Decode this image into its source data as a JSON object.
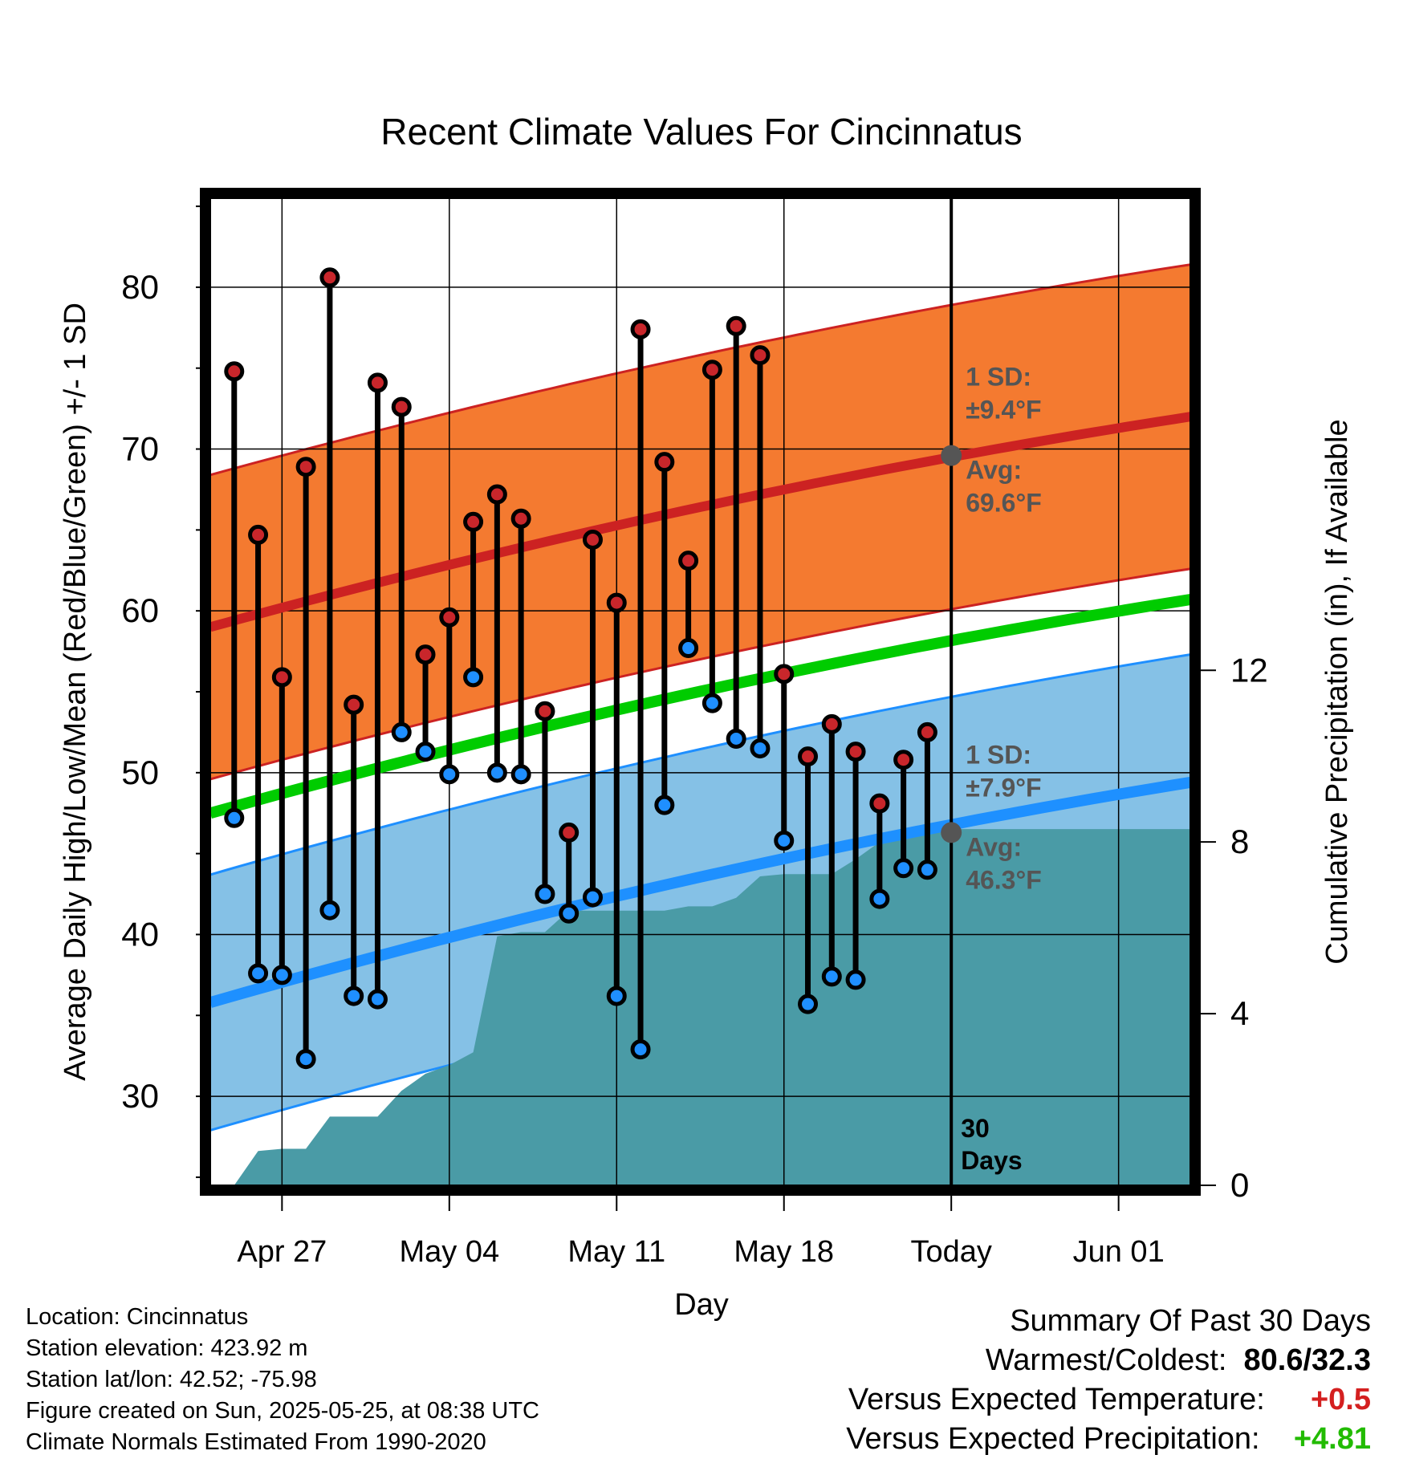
{
  "chart_data": {
    "type": "line",
    "title": "Recent Climate Values For Cincinnatus",
    "xlabel": "Day",
    "ylabel": "Average Daily High/Low/Mean (Red/Blue/Green) +/- 1 SD",
    "y2label": "Cumulative Precipitation (in), If Available",
    "ylim": [
      24.5,
      85.5
    ],
    "y2lim": [
      0,
      23
    ],
    "xlim": [
      "2025-04-24",
      "2025-06-04"
    ],
    "grid": true,
    "x_ticks": [
      {
        "date": "2025-04-27",
        "label": "Apr 27"
      },
      {
        "date": "2025-05-04",
        "label": "May 04"
      },
      {
        "date": "2025-05-11",
        "label": "May 11"
      },
      {
        "date": "2025-05-18",
        "label": "May 18"
      },
      {
        "date": "2025-05-25",
        "label": "Today"
      },
      {
        "date": "2025-06-01",
        "label": "Jun 01"
      }
    ],
    "y_ticks": [
      "30",
      "40",
      "50",
      "60",
      "70",
      "80"
    ],
    "y2_ticks": [
      "0",
      "4",
      "8",
      "12"
    ],
    "dates": [
      "2025-04-25",
      "2025-04-26",
      "2025-04-27",
      "2025-04-28",
      "2025-04-29",
      "2025-04-30",
      "2025-05-01",
      "2025-05-02",
      "2025-05-03",
      "2025-05-04",
      "2025-05-05",
      "2025-05-06",
      "2025-05-07",
      "2025-05-08",
      "2025-05-09",
      "2025-05-10",
      "2025-05-11",
      "2025-05-12",
      "2025-05-13",
      "2025-05-14",
      "2025-05-15",
      "2025-05-16",
      "2025-05-17",
      "2025-05-18",
      "2025-05-19",
      "2025-05-20",
      "2025-05-21",
      "2025-05-22",
      "2025-05-23",
      "2025-05-24"
    ],
    "series": [
      {
        "name": "Daily High",
        "color": "#c8262b",
        "values": [
          74.8,
          64.7,
          55.9,
          68.9,
          80.6,
          54.2,
          74.1,
          72.6,
          57.3,
          59.6,
          65.5,
          67.2,
          65.7,
          53.8,
          46.3,
          64.4,
          60.5,
          77.4,
          69.2,
          63.1,
          74.9,
          77.6,
          75.8,
          56.1,
          51.0,
          53.0,
          51.3,
          48.1,
          50.8,
          52.5
        ]
      },
      {
        "name": "Daily Low",
        "color": "#1f8fff",
        "values": [
          47.2,
          37.6,
          37.5,
          32.3,
          41.5,
          36.2,
          36.0,
          52.5,
          51.3,
          49.9,
          55.9,
          50.0,
          49.9,
          42.5,
          41.3,
          42.3,
          36.2,
          32.9,
          48.0,
          57.7,
          54.3,
          52.1,
          51.5,
          45.8,
          35.7,
          37.4,
          37.2,
          42.2,
          44.1,
          44.0
        ]
      },
      {
        "name": "Average High",
        "color": "#cc2222",
        "start": 59.0,
        "end": 72.0,
        "sd": "±9.4°F",
        "today_avg": "69.6°F",
        "today_value": 69.6
      },
      {
        "name": "Average Low",
        "color": "#1e90ff",
        "start": 35.8,
        "end": 49.4,
        "sd": "±7.9°F",
        "today_avg": "46.3°F",
        "today_value": 46.3
      },
      {
        "name": "Average Mean",
        "color": "#00cc00",
        "start": 47.5,
        "end": 60.7
      }
    ],
    "sd_high": 9.4,
    "sd_low": 7.9,
    "precip_steps": [
      [
        "2025-04-25",
        0.0
      ],
      [
        "2025-04-26",
        0.8
      ],
      [
        "2025-04-27",
        0.85
      ],
      [
        "2025-04-28",
        0.85
      ],
      [
        "2025-04-29",
        1.6
      ],
      [
        "2025-04-30",
        1.6
      ],
      [
        "2025-05-01",
        1.6
      ],
      [
        "2025-05-02",
        2.2
      ],
      [
        "2025-05-03",
        2.6
      ],
      [
        "2025-05-04",
        2.8
      ],
      [
        "2025-05-05",
        3.1
      ],
      [
        "2025-05-06",
        5.8
      ],
      [
        "2025-05-07",
        5.9
      ],
      [
        "2025-05-08",
        5.9
      ],
      [
        "2025-05-09",
        6.4
      ],
      [
        "2025-05-10",
        6.4
      ],
      [
        "2025-05-11",
        6.4
      ],
      [
        "2025-05-12",
        6.4
      ],
      [
        "2025-05-13",
        6.4
      ],
      [
        "2025-05-14",
        6.5
      ],
      [
        "2025-05-15",
        6.5
      ],
      [
        "2025-05-16",
        6.7
      ],
      [
        "2025-05-17",
        7.2
      ],
      [
        "2025-05-18",
        7.25
      ],
      [
        "2025-05-19",
        7.25
      ],
      [
        "2025-05-20",
        7.25
      ],
      [
        "2025-05-21",
        7.6
      ],
      [
        "2025-05-22",
        8.0
      ],
      [
        "2025-05-23",
        8.3
      ],
      [
        "2025-05-24",
        8.3
      ],
      [
        "2025-05-25",
        8.3
      ],
      [
        "2025-06-04",
        8.3
      ]
    ],
    "precip_color": "#4a9ba6",
    "today_label": "30\nDays",
    "annotations": {
      "sd_label": "1 SD:",
      "avg_label": "Avg:"
    }
  },
  "info": {
    "location": "Location: Cincinnatus",
    "elevation": "Station elevation: 423.92 m",
    "latlon": "Station lat/lon: 42.52; -75.98",
    "created": "Figure created on Sun, 2025-05-25, at 08:38 UTC",
    "normals": "Climate Normals Estimated From 1990-2020"
  },
  "summary": {
    "title": "Summary Of Past 30 Days",
    "warm_label": "Warmest/Coldest:",
    "warm_value": "80.6/32.3",
    "temp_label": "Versus Expected Temperature:",
    "temp_value": "+0.5",
    "temp_color": "#d42020",
    "precip_label": "Versus Expected Precipitation:",
    "precip_value": "+4.81",
    "precip_color": "#22bb00"
  }
}
